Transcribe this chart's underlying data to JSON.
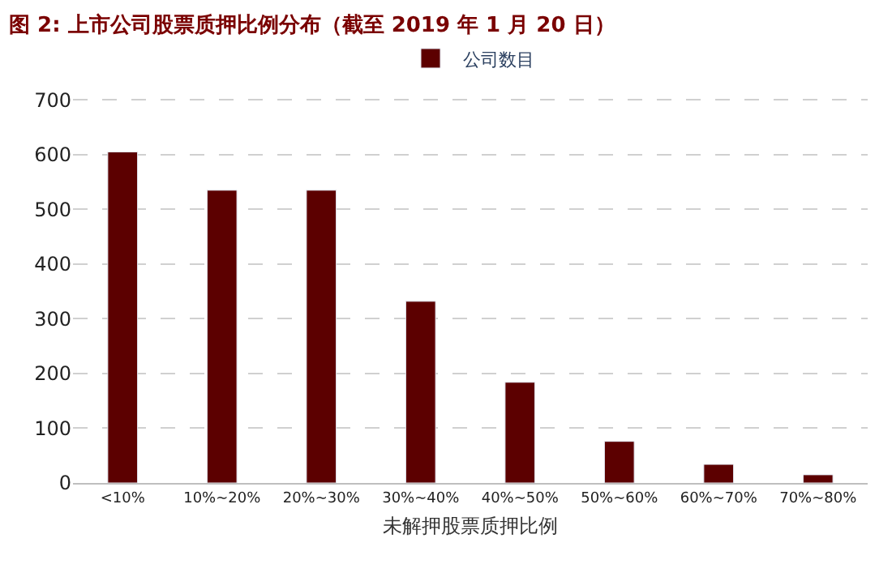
{
  "chart_data": {
    "type": "bar",
    "title": "图 2: 上市公司股票质押比例分布（截至 2019 年 1 月 20 日）",
    "xlabel": "未解押股票质押比例",
    "categories": [
      "<10%",
      "10%~20%",
      "20%~30%",
      "30%~40%",
      "40%~50%",
      "50%~60%",
      "60%~70%",
      "70%~80%"
    ],
    "series": [
      {
        "name": "公司数目",
        "color": "#5c0000",
        "values": [
          605,
          535,
          535,
          332,
          184,
          76,
          34,
          15
        ]
      }
    ],
    "ylim": [
      0,
      705
    ],
    "yticks": [
      0,
      100,
      200,
      300,
      400,
      500,
      600,
      700
    ],
    "grid": "y",
    "legend": "top"
  }
}
